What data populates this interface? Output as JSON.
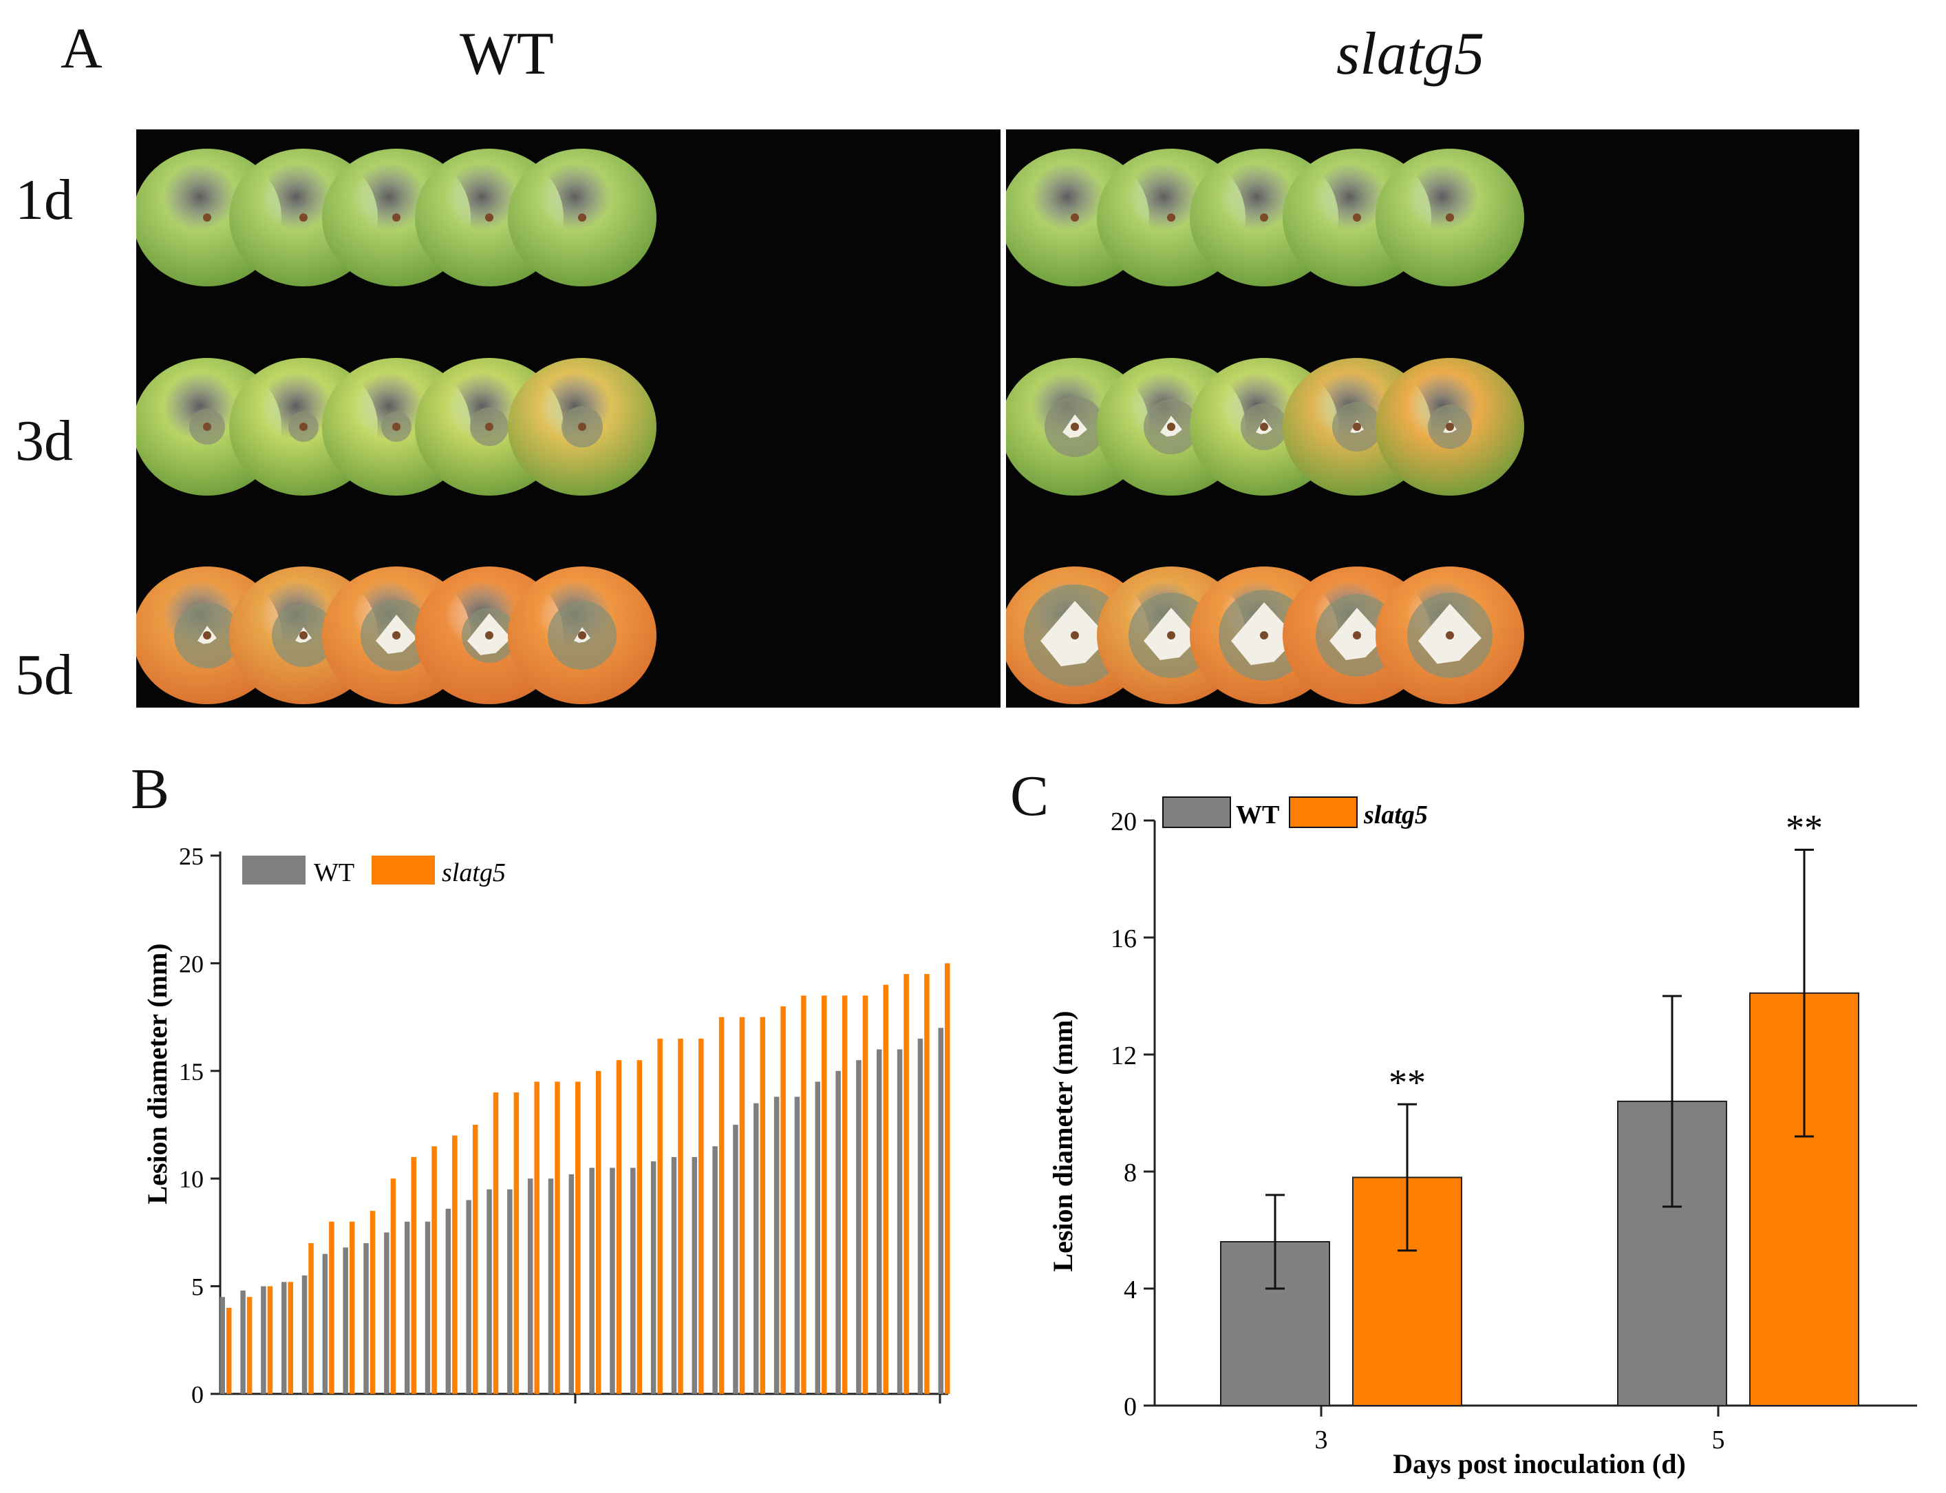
{
  "panel_a": {
    "letter": "A",
    "columns": [
      "WT",
      "slatg5"
    ],
    "rows": [
      "1d",
      "3d",
      "5d"
    ],
    "fruit_colors": {
      "1d": [
        "#aed06a",
        "#aed06a",
        "#aed06a",
        "#aed06a",
        "#aed06a"
      ],
      "3d_wt": [
        "#b8d466",
        "#c0d765",
        "#c2d766",
        "#c4d664",
        "#e0c058"
      ],
      "3d_mut": [
        "#b3d166",
        "#b9d467",
        "#c1d667",
        "#e0b552",
        "#ecac4a"
      ],
      "5d": [
        "#ec9c45",
        "#e8a64a",
        "#ee9a44",
        "#ee8f40",
        "#ef9742"
      ],
      "lesion": "#8a8f73",
      "mold": "#f2f0e6"
    }
  },
  "chart_data": [
    {
      "panel": "B",
      "type": "bar",
      "title": "",
      "xlabel": "",
      "ylabel": "Lesion diameter (mm)",
      "ylim": [
        0,
        25
      ],
      "yticks": [
        "0",
        "5",
        "10",
        "15",
        "20",
        "25"
      ],
      "legend_position": "top-left",
      "series": [
        {
          "name": "WT",
          "color": "#7f7f7f",
          "values": [
            4.5,
            4.8,
            5.0,
            5.2,
            5.5,
            6.5,
            6.8,
            7.0,
            7.5,
            8.0,
            8.0,
            8.6,
            9.0,
            9.5,
            9.5,
            10.0,
            10.0,
            10.2,
            10.5,
            10.5,
            10.5,
            10.8,
            11.0,
            11.0,
            11.5,
            12.5,
            13.5,
            13.8,
            13.8,
            14.5,
            15.0,
            15.5,
            16.0,
            16.0,
            16.5,
            17.0
          ]
        },
        {
          "name": "slatg5",
          "color": "#ff7f00",
          "values": [
            4.0,
            4.5,
            5.0,
            5.2,
            7.0,
            8.0,
            8.0,
            8.5,
            10.0,
            11.0,
            11.5,
            12.0,
            12.5,
            14.0,
            14.0,
            14.5,
            14.5,
            14.5,
            15.0,
            15.5,
            15.5,
            16.5,
            16.5,
            16.5,
            17.5,
            17.5,
            17.5,
            18.0,
            18.5,
            18.5,
            18.5,
            18.5,
            19.0,
            19.5,
            19.5,
            20.0
          ]
        }
      ]
    },
    {
      "panel": "C",
      "type": "bar",
      "title": "",
      "xlabel": "Days post inoculation (d)",
      "ylabel": "Lesion diameter (mm)",
      "ylim": [
        0,
        20
      ],
      "yticks": [
        "0",
        "4",
        "8",
        "12",
        "16",
        "20"
      ],
      "categories": [
        "3",
        "5"
      ],
      "legend_position": "top-left",
      "series": [
        {
          "name": "WT",
          "color": "#808080",
          "values": [
            5.6,
            10.4
          ],
          "error": [
            1.6,
            3.6
          ]
        },
        {
          "name": "slatg5",
          "color": "#ff7f00",
          "values": [
            7.8,
            14.1
          ],
          "error": [
            2.5,
            4.9
          ]
        }
      ],
      "annotations": [
        "**",
        "**"
      ]
    }
  ]
}
